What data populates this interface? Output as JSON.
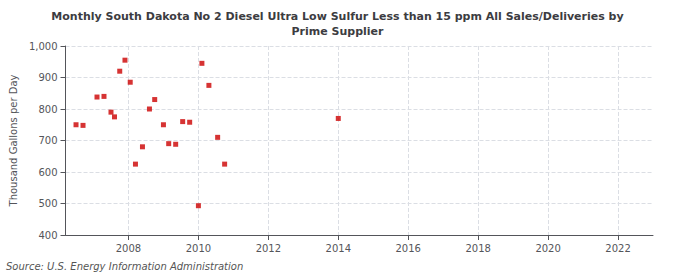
{
  "chart_data": {
    "type": "scatter",
    "title": "Monthly South Dakota No 2 Diesel Ultra Low Sulfur Less than 15 ppm All Sales/Deliveries by\nPrime Supplier",
    "ylabel": "Thousand Gallons per Day",
    "annotations": [
      "Source: U.S. Energy Information Administration"
    ],
    "color": "#cc0000",
    "marker": "square",
    "grid": true,
    "x": [
      2006.5,
      2006.7,
      2007.1,
      2007.3,
      2007.5,
      2007.6,
      2007.75,
      2007.9,
      2008.05,
      2008.2,
      2008.4,
      2008.6,
      2008.75,
      2009.0,
      2009.15,
      2009.35,
      2009.55,
      2009.75,
      2010.0,
      2010.1,
      2010.3,
      2010.55,
      2010.75,
      2014.0
    ],
    "values": [
      750,
      748,
      838,
      840,
      790,
      775,
      920,
      955,
      885,
      625,
      680,
      800,
      830,
      750,
      690,
      688,
      760,
      758,
      493,
      945,
      875,
      710,
      625,
      770
    ],
    "xlim": [
      2006.2,
      2023.0
    ],
    "xticks": [
      2008,
      2010,
      2012,
      2014,
      2016,
      2018,
      2020,
      2022
    ],
    "ylim": [
      400,
      1000
    ],
    "yticks": [
      400,
      500,
      600,
      700,
      800,
      900,
      {
        "value": 1000,
        "label": "1,000"
      }
    ]
  }
}
